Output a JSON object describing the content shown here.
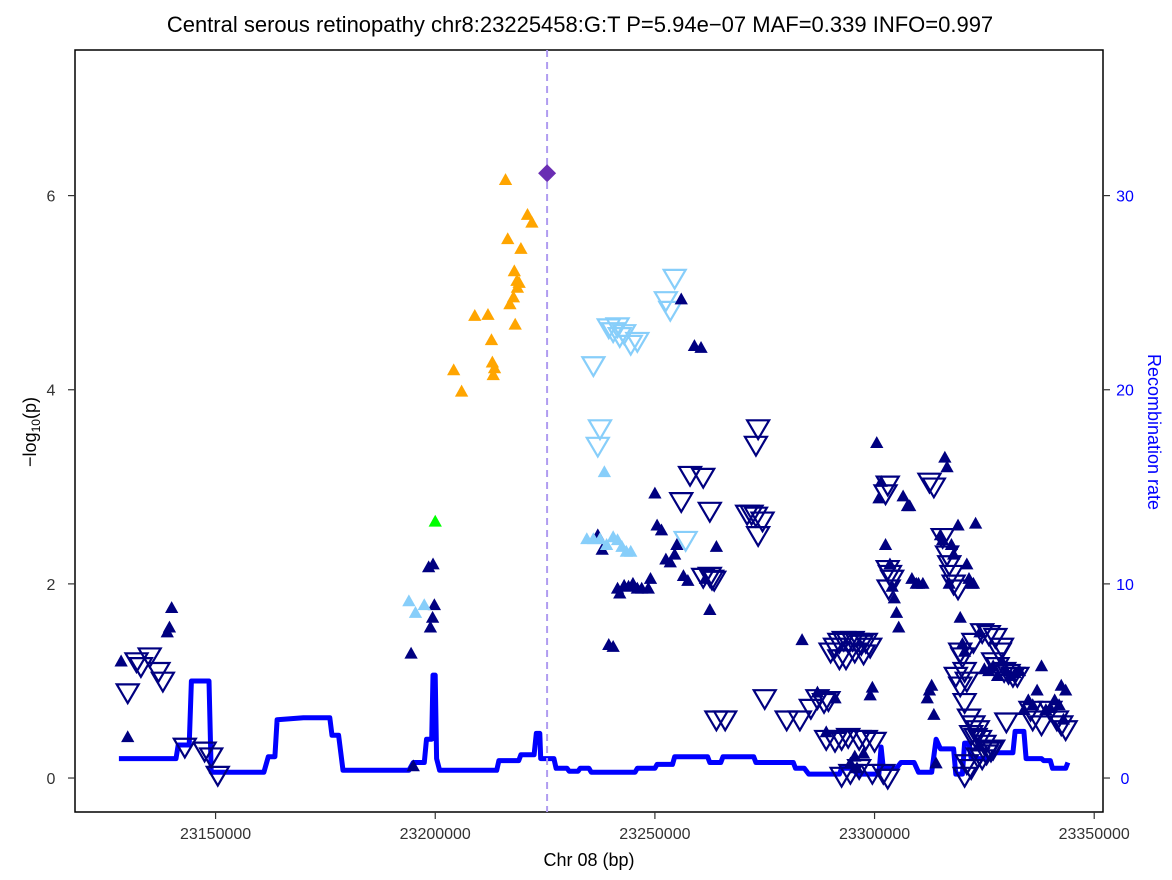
{
  "chart_data": {
    "type": "scatter",
    "title": "Central serous retinopathy chr8:23225458:G:T P=5.94e−07 MAF=0.339 INFO=0.997",
    "xlabel": "Chr 08 (bp)",
    "ylabel_left": "−log",
    "ylabel_left_sub": "10",
    "ylabel_left_suffix": "(p)",
    "ylabel_right": "Recombination rate",
    "xlim": [
      23118000,
      23352000
    ],
    "ylim": [
      -0.35,
      7.5
    ],
    "y2lim": [
      -1.75,
      37.5
    ],
    "x_ticks": [
      23150000,
      23200000,
      23250000,
      23300000,
      23350000
    ],
    "x_tick_labels": [
      "23150000",
      "23200000",
      "23250000",
      "23300000",
      "23350000"
    ],
    "y_ticks": [
      0,
      2,
      4,
      6
    ],
    "y_tick_labels": [
      "0",
      "2",
      "4",
      "6"
    ],
    "y2_ticks": [
      0,
      10,
      20,
      30
    ],
    "y2_tick_labels": [
      "0",
      "10",
      "20",
      "30"
    ],
    "lead_variant": {
      "x": 23225458,
      "y": 6.23,
      "color": "#6a2db3"
    },
    "lead_line_color": "#b09cf0",
    "colors": {
      "orange": "#ffa500",
      "lightblue": "#87cefa",
      "navy": "#000080",
      "green": "#00ff00",
      "recomb": "#0000ff"
    },
    "recombination": [
      [
        23128000,
        1
      ],
      [
        23141000,
        1
      ],
      [
        23141500,
        1.7
      ],
      [
        23144000,
        1.7
      ],
      [
        23144500,
        5
      ],
      [
        23146000,
        5
      ],
      [
        23148500,
        5
      ],
      [
        23149000,
        0.3
      ],
      [
        23161000,
        0.3
      ],
      [
        23162000,
        1.1
      ],
      [
        23163500,
        1.1
      ],
      [
        23164000,
        3
      ],
      [
        23170000,
        3.1
      ],
      [
        23176000,
        3.1
      ],
      [
        23176500,
        2.2
      ],
      [
        23178000,
        2.2
      ],
      [
        23179000,
        0.4
      ],
      [
        23194000,
        0.4
      ],
      [
        23195000,
        0.8
      ],
      [
        23197500,
        0.8
      ],
      [
        23198000,
        2
      ],
      [
        23199200,
        2
      ],
      [
        23199500,
        5.3
      ],
      [
        23200000,
        5.3
      ],
      [
        23200300,
        1
      ],
      [
        23201000,
        0.4
      ],
      [
        23214000,
        0.4
      ],
      [
        23214500,
        0.9
      ],
      [
        23219000,
        0.9
      ],
      [
        23219500,
        1.2
      ],
      [
        23222500,
        1.2
      ],
      [
        23223000,
        2.3
      ],
      [
        23223800,
        2.3
      ],
      [
        23224000,
        1
      ],
      [
        23227000,
        1
      ],
      [
        23227500,
        0.5
      ],
      [
        23230000,
        0.5
      ],
      [
        23230500,
        0.35
      ],
      [
        23232500,
        0.35
      ],
      [
        23233000,
        0.5
      ],
      [
        23235000,
        0.5
      ],
      [
        23235500,
        0.3
      ],
      [
        23245500,
        0.3
      ],
      [
        23246000,
        0.5
      ],
      [
        23250000,
        0.5
      ],
      [
        23250500,
        0.7
      ],
      [
        23254000,
        0.7
      ],
      [
        23254500,
        1.1
      ],
      [
        23262000,
        1.1
      ],
      [
        23262500,
        0.8
      ],
      [
        23265000,
        0.8
      ],
      [
        23265500,
        1.1
      ],
      [
        23272500,
        1.1
      ],
      [
        23273000,
        0.8
      ],
      [
        23281500,
        0.8
      ],
      [
        23282000,
        0.5
      ],
      [
        23284000,
        0.5
      ],
      [
        23285000,
        0.2
      ],
      [
        23292000,
        0.2
      ],
      [
        23292500,
        0.5
      ],
      [
        23295000,
        0.5
      ],
      [
        23296000,
        0.2
      ],
      [
        23301000,
        0.2
      ],
      [
        23301500,
        1.6
      ],
      [
        23302000,
        0.5
      ],
      [
        23305000,
        0.5
      ],
      [
        23306000,
        0.8
      ],
      [
        23309000,
        0.8
      ],
      [
        23310000,
        0.3
      ],
      [
        23313000,
        0.3
      ],
      [
        23314000,
        2
      ],
      [
        23315000,
        1.5
      ],
      [
        23318000,
        1.5
      ],
      [
        23318500,
        0.2
      ],
      [
        23320000,
        0.2
      ],
      [
        23320500,
        1.8
      ],
      [
        23321500,
        1.8
      ],
      [
        23322000,
        1
      ],
      [
        23326500,
        1
      ],
      [
        23327000,
        1.3
      ],
      [
        23331500,
        1.3
      ],
      [
        23332000,
        2.4
      ],
      [
        23334000,
        2.4
      ],
      [
        23334500,
        1
      ],
      [
        23338000,
        1
      ],
      [
        23338500,
        0.9
      ],
      [
        23340000,
        0.9
      ],
      [
        23340500,
        0.5
      ],
      [
        23343500,
        0.5
      ],
      [
        23344000,
        0.8
      ]
    ],
    "orange_up": [
      [
        23216000,
        6.16
      ],
      [
        23221000,
        5.8
      ],
      [
        23222000,
        5.72
      ],
      [
        23216500,
        5.55
      ],
      [
        23219500,
        5.45
      ],
      [
        23218000,
        5.22
      ],
      [
        23218600,
        5.12
      ],
      [
        23219100,
        5.1
      ],
      [
        23217800,
        4.95
      ],
      [
        23217000,
        4.88
      ],
      [
        23212800,
        4.51
      ],
      [
        23218200,
        4.67
      ],
      [
        23204200,
        4.2
      ],
      [
        23206000,
        3.98
      ],
      [
        23209000,
        4.76
      ],
      [
        23213000,
        4.28
      ],
      [
        23213500,
        4.22
      ],
      [
        23213200,
        4.15
      ],
      [
        23212000,
        4.77
      ],
      [
        23218700,
        5.05
      ]
    ],
    "green_up": [
      [
        23200000,
        2.64
      ]
    ],
    "lightblue_up": [
      [
        23194000,
        1.82
      ],
      [
        23195500,
        1.7
      ],
      [
        23197500,
        1.78
      ],
      [
        23238500,
        3.15
      ],
      [
        23234500,
        2.46
      ],
      [
        23236000,
        2.46
      ],
      [
        23237500,
        2.46
      ],
      [
        23239000,
        2.4
      ],
      [
        23240500,
        2.48
      ],
      [
        23241500,
        2.45
      ],
      [
        23242500,
        2.38
      ],
      [
        23243500,
        2.33
      ],
      [
        23244500,
        2.33
      ]
    ],
    "navy_up": [
      [
        23128500,
        1.2
      ],
      [
        23130000,
        0.42
      ],
      [
        23139000,
        1.5
      ],
      [
        23139500,
        1.55
      ],
      [
        23140000,
        1.75
      ],
      [
        23194500,
        1.28
      ],
      [
        23195000,
        0.12
      ],
      [
        23198500,
        2.17
      ],
      [
        23199500,
        2.2
      ],
      [
        23199800,
        1.78
      ],
      [
        23199400,
        1.65
      ],
      [
        23198900,
        1.55
      ],
      [
        23237000,
        2.5
      ],
      [
        23238000,
        2.35
      ],
      [
        23239500,
        1.37
      ],
      [
        23240500,
        1.35
      ],
      [
        23241500,
        1.95
      ],
      [
        23242000,
        1.9
      ],
      [
        23243000,
        1.98
      ],
      [
        23244000,
        1.97
      ],
      [
        23245000,
        2
      ],
      [
        23246000,
        1.95
      ],
      [
        23247000,
        1.95
      ],
      [
        23248500,
        1.95
      ],
      [
        23249000,
        2.05
      ],
      [
        23250000,
        2.93
      ],
      [
        23250500,
        2.6
      ],
      [
        23251500,
        2.55
      ],
      [
        23252500,
        2.25
      ],
      [
        23253500,
        2.22
      ],
      [
        23254500,
        2.3
      ],
      [
        23255000,
        2.4
      ],
      [
        23256000,
        4.93
      ],
      [
        23256500,
        2.08
      ],
      [
        23257500,
        2.03
      ],
      [
        23259000,
        4.45
      ],
      [
        23260500,
        4.43
      ],
      [
        23261500,
        2.05
      ],
      [
        23262500,
        1.73
      ],
      [
        23264000,
        2.38
      ],
      [
        23283500,
        1.42
      ],
      [
        23287000,
        0.88
      ],
      [
        23289000,
        0.47
      ],
      [
        23291000,
        0.82
      ],
      [
        23294500,
        0.15
      ],
      [
        23295500,
        0.22
      ],
      [
        23296000,
        0.1
      ],
      [
        23297500,
        0.25
      ],
      [
        23299000,
        0.85
      ],
      [
        23299500,
        0.93
      ],
      [
        23300500,
        3.45
      ],
      [
        23301000,
        2.88
      ],
      [
        23301500,
        3.05
      ],
      [
        23302500,
        2.4
      ],
      [
        23303500,
        2.2
      ],
      [
        23304000,
        1.97
      ],
      [
        23304500,
        1.85
      ],
      [
        23305000,
        1.7
      ],
      [
        23305500,
        1.55
      ],
      [
        23306500,
        2.9
      ],
      [
        23307500,
        2.8
      ],
      [
        23308000,
        2.8
      ],
      [
        23308500,
        2.05
      ],
      [
        23309500,
        2.0
      ],
      [
        23310000,
        2.0
      ],
      [
        23311000,
        2.0
      ],
      [
        23312000,
        0.82
      ],
      [
        23312500,
        0.9
      ],
      [
        23313000,
        0.95
      ],
      [
        23313500,
        0.65
      ],
      [
        23314000,
        0.15
      ],
      [
        23315000,
        2.5
      ],
      [
        23315500,
        2.45
      ],
      [
        23316000,
        3.3
      ],
      [
        23316500,
        3.2
      ],
      [
        23317000,
        2.0
      ],
      [
        23317500,
        2.4
      ],
      [
        23318000,
        2.3
      ],
      [
        23319000,
        2.6
      ],
      [
        23319500,
        1.65
      ],
      [
        23320000,
        1.38
      ],
      [
        23320500,
        1.3
      ],
      [
        23321000,
        2.2
      ],
      [
        23321500,
        2.05
      ],
      [
        23322000,
        2.0
      ],
      [
        23322500,
        2.0
      ],
      [
        23323000,
        2.62
      ],
      [
        23324000,
        1.5
      ],
      [
        23325000,
        1.12
      ],
      [
        23326000,
        1.1
      ],
      [
        23327000,
        1.15
      ],
      [
        23328000,
        1.05
      ],
      [
        23329000,
        1.2
      ],
      [
        23330000,
        1.1
      ],
      [
        23331000,
        1.05
      ],
      [
        23332000,
        1.08
      ],
      [
        23333000,
        1.1
      ],
      [
        23334000,
        0.7
      ],
      [
        23335000,
        0.8
      ],
      [
        23336000,
        0.75
      ],
      [
        23337000,
        0.9
      ],
      [
        23338000,
        1.15
      ],
      [
        23339000,
        0.7
      ],
      [
        23340000,
        0.72
      ],
      [
        23341000,
        0.8
      ],
      [
        23342000,
        0.75
      ],
      [
        23343000,
        0.6
      ],
      [
        23343500,
        0.9
      ],
      [
        23342500,
        0.95
      ]
    ],
    "lightblue_down": [
      [
        23254500,
        5.15
      ],
      [
        23252500,
        4.92
      ],
      [
        23253500,
        4.82
      ],
      [
        23239500,
        4.64
      ],
      [
        23240500,
        4.6
      ],
      [
        23241500,
        4.65
      ],
      [
        23242000,
        4.55
      ],
      [
        23243000,
        4.58
      ],
      [
        23244500,
        4.47
      ],
      [
        23246000,
        4.5
      ],
      [
        23236000,
        4.25
      ],
      [
        23237500,
        3.6
      ],
      [
        23237000,
        3.42
      ],
      [
        23257000,
        2.45
      ]
    ],
    "navy_down": [
      [
        23130000,
        0.88
      ],
      [
        23132000,
        1.2
      ],
      [
        23133000,
        1.15
      ],
      [
        23135000,
        1.25
      ],
      [
        23137000,
        1.1
      ],
      [
        23138000,
        1.0
      ],
      [
        23143000,
        0.32
      ],
      [
        23147500,
        0.28
      ],
      [
        23149000,
        0.22
      ],
      [
        23150500,
        0.03
      ],
      [
        23258000,
        3.12
      ],
      [
        23261000,
        3.1
      ],
      [
        23256000,
        2.85
      ],
      [
        23262500,
        2.75
      ],
      [
        23261000,
        2.07
      ],
      [
        23263000,
        2.05
      ],
      [
        23262500,
        2.08
      ],
      [
        23263500,
        2.04
      ],
      [
        23273500,
        3.6
      ],
      [
        23273000,
        3.43
      ],
      [
        23271000,
        2.72
      ],
      [
        23272000,
        2.72
      ],
      [
        23273000,
        2.7
      ],
      [
        23274500,
        2.65
      ],
      [
        23273500,
        2.5
      ],
      [
        23264000,
        0.6
      ],
      [
        23266000,
        0.6
      ],
      [
        23275000,
        0.82
      ],
      [
        23280000,
        0.6
      ],
      [
        23283000,
        0.6
      ],
      [
        23285500,
        0.72
      ],
      [
        23287000,
        0.82
      ],
      [
        23288500,
        0.78
      ],
      [
        23289500,
        0.8
      ],
      [
        23290000,
        1.3
      ],
      [
        23291000,
        1.35
      ],
      [
        23292000,
        1.4
      ],
      [
        23293000,
        1.42
      ],
      [
        23294000,
        1.4
      ],
      [
        23295000,
        1.42
      ],
      [
        23296000,
        1.4
      ],
      [
        23297000,
        1.38
      ],
      [
        23298000,
        1.4
      ],
      [
        23299000,
        1.35
      ],
      [
        23292000,
        1.23
      ],
      [
        23293500,
        1.23
      ],
      [
        23295500,
        1.3
      ],
      [
        23297500,
        1.28
      ],
      [
        23289000,
        0.4
      ],
      [
        23291000,
        0.38
      ],
      [
        23292500,
        0.4
      ],
      [
        23294000,
        0.42
      ],
      [
        23296500,
        0.4
      ],
      [
        23298000,
        0.4
      ],
      [
        23300000,
        0.38
      ],
      [
        23292500,
        0.02
      ],
      [
        23294500,
        0.05
      ],
      [
        23296500,
        0.1
      ],
      [
        23299500,
        0.05
      ],
      [
        23303000,
        3.02
      ],
      [
        23302500,
        2.93
      ],
      [
        23303000,
        2.15
      ],
      [
        23303500,
        2.1
      ],
      [
        23304000,
        2.05
      ],
      [
        23303200,
        1.95
      ],
      [
        23302000,
        0.05
      ],
      [
        23303000,
        0.0
      ],
      [
        23312500,
        3.05
      ],
      [
        23313500,
        3.0
      ],
      [
        23315500,
        2.48
      ],
      [
        23316500,
        2.3
      ],
      [
        23317000,
        2.2
      ],
      [
        23317500,
        2.1
      ],
      [
        23318000,
        2.0
      ],
      [
        23319000,
        1.95
      ],
      [
        23319500,
        1.3
      ],
      [
        23320000,
        1.25
      ],
      [
        23320500,
        1.1
      ],
      [
        23321000,
        1.0
      ],
      [
        23318500,
        1.05
      ],
      [
        23319500,
        0.95
      ],
      [
        23320500,
        0.78
      ],
      [
        23321500,
        0.62
      ],
      [
        23322500,
        0.55
      ],
      [
        23323500,
        0.5
      ],
      [
        23322000,
        0.45
      ],
      [
        23323000,
        0.42
      ],
      [
        23324000,
        0.4
      ],
      [
        23325000,
        0.35
      ],
      [
        23326000,
        0.3
      ],
      [
        23327000,
        0.3
      ],
      [
        23323500,
        0.22
      ],
      [
        23324500,
        0.2
      ],
      [
        23325500,
        0.25
      ],
      [
        23326500,
        0.28
      ],
      [
        23321000,
        0.15
      ],
      [
        23322000,
        0.1
      ],
      [
        23320500,
        0.02
      ],
      [
        23324500,
        1.5
      ],
      [
        23326000,
        1.48
      ],
      [
        23327500,
        1.45
      ],
      [
        23328500,
        1.3
      ],
      [
        23322500,
        1.4
      ],
      [
        23329000,
        1.35
      ],
      [
        23327000,
        1.2
      ],
      [
        23328000,
        1.15
      ],
      [
        23329500,
        1.1
      ],
      [
        23330500,
        1.08
      ],
      [
        23331500,
        1.05
      ],
      [
        23332500,
        1.05
      ],
      [
        23336000,
        0.6
      ],
      [
        23330000,
        0.58
      ],
      [
        23335500,
        0.7
      ],
      [
        23338000,
        0.55
      ],
      [
        23340000,
        0.7
      ],
      [
        23341500,
        0.6
      ],
      [
        23342500,
        0.55
      ],
      [
        23343500,
        0.5
      ]
    ]
  }
}
